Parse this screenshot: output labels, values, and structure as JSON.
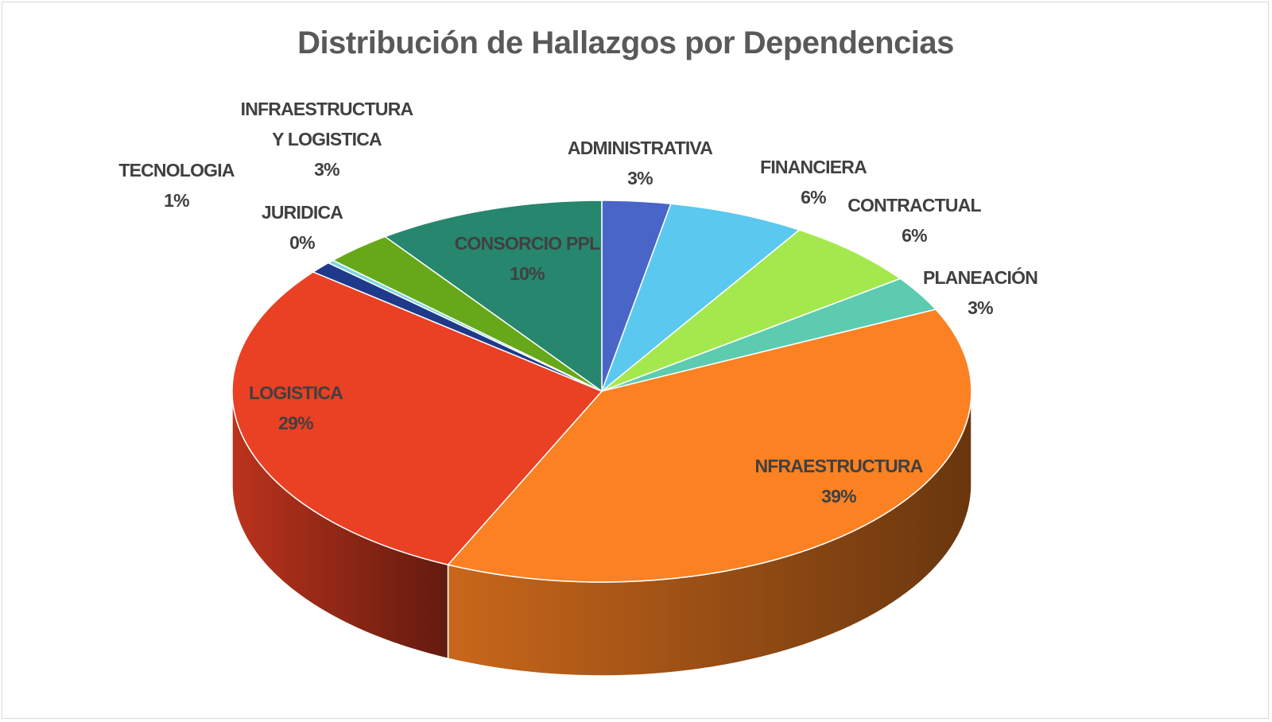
{
  "chart_data": {
    "type": "pie",
    "title": "Distribución de Hallazgos por Dependencias",
    "categories": [
      "ADMINISTRATIVA",
      "FINANCIERA",
      "CONTRACTUAL",
      "PLANEACIÓN",
      "NFRAESTRUCTURA",
      "LOGISTICA",
      "TECNOLOGIA",
      "JURIDICA",
      "INFRAESTRUCTURA Y LOGISTICA",
      "CONSORCIO PPL"
    ],
    "values": [
      3,
      6,
      6,
      3,
      39,
      29,
      1,
      0.3,
      3,
      10
    ],
    "value_labels": [
      "3%",
      "6%",
      "6%",
      "3%",
      "39%",
      "29%",
      "1%",
      "0%",
      "3%",
      "10%"
    ],
    "colors": [
      "#4a65c8",
      "#5bc8ef",
      "#a5e84e",
      "#5ccbb0",
      "#fb8122",
      "#ea4023",
      "#1f3a8a",
      "#7fd6e0",
      "#67a81a",
      "#27866e"
    ]
  }
}
